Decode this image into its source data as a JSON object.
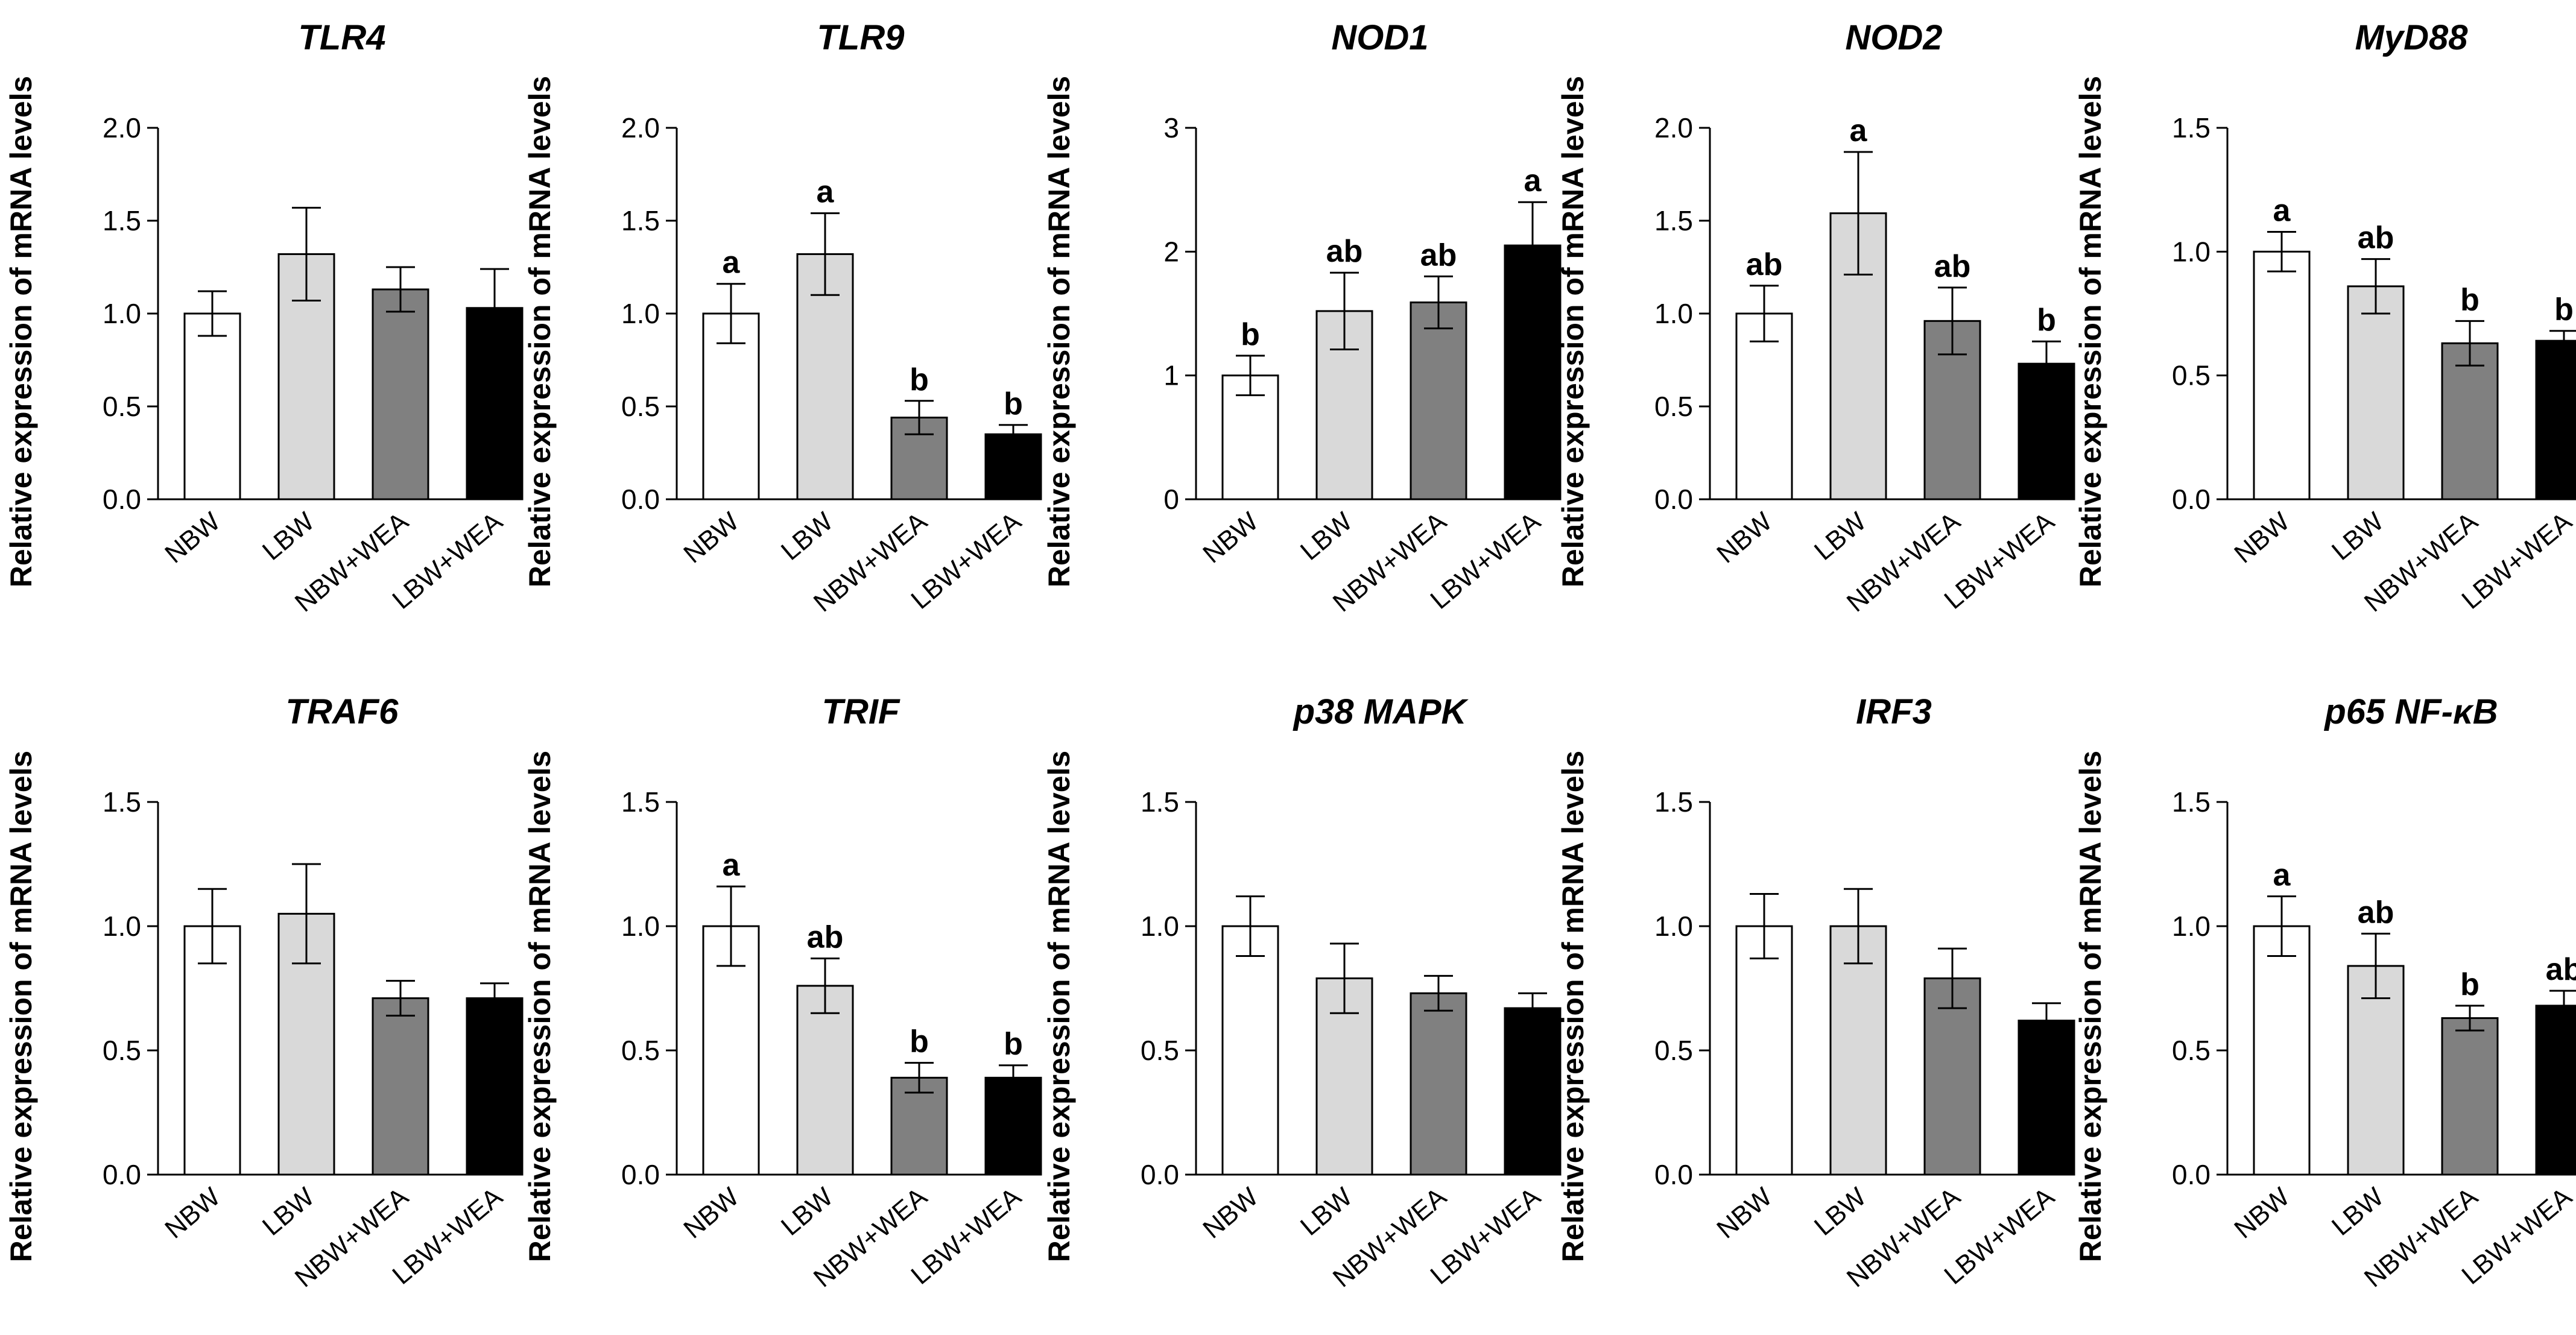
{
  "figure_title": "",
  "group_colors": {
    "NBW": "#ffffff",
    "LBW": "#d9d9d9",
    "NBW+WEA": "#808080",
    "LBW+WEA": "#000000"
  },
  "chart_data": [
    {
      "type": "bar",
      "title": "TLR4",
      "ylabel": "Relative expression of mRNA levels",
      "xlabel": "",
      "categories": [
        "NBW",
        "LBW",
        "NBW+WEA",
        "LBW+WEA"
      ],
      "values": [
        1.0,
        1.32,
        1.13,
        1.03
      ],
      "errors": [
        0.12,
        0.25,
        0.12,
        0.21
      ],
      "significance": [
        "",
        "",
        "",
        ""
      ],
      "ylim": [
        0,
        2.0
      ],
      "yticks": [
        0.0,
        0.5,
        1.0,
        1.5,
        2.0
      ],
      "ytick_labels": [
        "0.0",
        "0.5",
        "1.0",
        "1.5",
        "2.0"
      ]
    },
    {
      "type": "bar",
      "title": "TLR9",
      "ylabel": "Relative expression of mRNA levels",
      "xlabel": "",
      "categories": [
        "NBW",
        "LBW",
        "NBW+WEA",
        "LBW+WEA"
      ],
      "values": [
        1.0,
        1.32,
        0.44,
        0.35
      ],
      "errors": [
        0.16,
        0.22,
        0.09,
        0.05
      ],
      "significance": [
        "a",
        "a",
        "b",
        "b"
      ],
      "ylim": [
        0,
        2.0
      ],
      "yticks": [
        0.0,
        0.5,
        1.0,
        1.5,
        2.0
      ],
      "ytick_labels": [
        "0.0",
        "0.5",
        "1.0",
        "1.5",
        "2.0"
      ]
    },
    {
      "type": "bar",
      "title": "NOD1",
      "ylabel": "Relative expression of mRNA levels",
      "xlabel": "",
      "categories": [
        "NBW",
        "LBW",
        "NBW+WEA",
        "LBW+WEA"
      ],
      "values": [
        1.0,
        1.52,
        1.59,
        2.05
      ],
      "errors": [
        0.16,
        0.31,
        0.21,
        0.35
      ],
      "significance": [
        "b",
        "ab",
        "ab",
        "a"
      ],
      "ylim": [
        0,
        3
      ],
      "yticks": [
        0,
        1,
        2,
        3
      ],
      "ytick_labels": [
        "0",
        "1",
        "2",
        "3"
      ]
    },
    {
      "type": "bar",
      "title": "NOD2",
      "ylabel": "Relative expression of mRNA levels",
      "xlabel": "",
      "categories": [
        "NBW",
        "LBW",
        "NBW+WEA",
        "LBW+WEA"
      ],
      "values": [
        1.0,
        1.54,
        0.96,
        0.73
      ],
      "errors": [
        0.15,
        0.33,
        0.18,
        0.12
      ],
      "significance": [
        "ab",
        "a",
        "ab",
        "b"
      ],
      "ylim": [
        0,
        2.0
      ],
      "yticks": [
        0.0,
        0.5,
        1.0,
        1.5,
        2.0
      ],
      "ytick_labels": [
        "0.0",
        "0.5",
        "1.0",
        "1.5",
        "2.0"
      ]
    },
    {
      "type": "bar",
      "title": "MyD88",
      "ylabel": "Relative expression of mRNA levels",
      "xlabel": "",
      "categories": [
        "NBW",
        "LBW",
        "NBW+WEA",
        "LBW+WEA"
      ],
      "values": [
        1.0,
        0.86,
        0.63,
        0.64
      ],
      "errors": [
        0.08,
        0.11,
        0.09,
        0.04
      ],
      "significance": [
        "a",
        "ab",
        "b",
        "b"
      ],
      "ylim": [
        0,
        1.5
      ],
      "yticks": [
        0.0,
        0.5,
        1.0,
        1.5
      ],
      "ytick_labels": [
        "0.0",
        "0.5",
        "1.0",
        "1.5"
      ]
    },
    {
      "type": "bar",
      "title": "TRAF6",
      "ylabel": "Relative expression of mRNA levels",
      "xlabel": "",
      "categories": [
        "NBW",
        "LBW",
        "NBW+WEA",
        "LBW+WEA"
      ],
      "values": [
        1.0,
        1.05,
        0.71,
        0.71
      ],
      "errors": [
        0.15,
        0.2,
        0.07,
        0.06
      ],
      "significance": [
        "",
        "",
        "",
        ""
      ],
      "ylim": [
        0,
        1.5
      ],
      "yticks": [
        0.0,
        0.5,
        1.0,
        1.5
      ],
      "ytick_labels": [
        "0.0",
        "0.5",
        "1.0",
        "1.5"
      ]
    },
    {
      "type": "bar",
      "title": "TRIF",
      "ylabel": "Relative expression of mRNA levels",
      "xlabel": "",
      "categories": [
        "NBW",
        "LBW",
        "NBW+WEA",
        "LBW+WEA"
      ],
      "values": [
        1.0,
        0.76,
        0.39,
        0.39
      ],
      "errors": [
        0.16,
        0.11,
        0.06,
        0.05
      ],
      "significance": [
        "a",
        "ab",
        "b",
        "b"
      ],
      "ylim": [
        0,
        1.5
      ],
      "yticks": [
        0.0,
        0.5,
        1.0,
        1.5
      ],
      "ytick_labels": [
        "0.0",
        "0.5",
        "1.0",
        "1.5"
      ]
    },
    {
      "type": "bar",
      "title": "p38 MAPK",
      "ylabel": "Relative expression of mRNA levels",
      "xlabel": "",
      "categories": [
        "NBW",
        "LBW",
        "NBW+WEA",
        "LBW+WEA"
      ],
      "values": [
        1.0,
        0.79,
        0.73,
        0.67
      ],
      "errors": [
        0.12,
        0.14,
        0.07,
        0.06
      ],
      "significance": [
        "",
        "",
        "",
        ""
      ],
      "ylim": [
        0,
        1.5
      ],
      "yticks": [
        0.0,
        0.5,
        1.0,
        1.5
      ],
      "ytick_labels": [
        "0.0",
        "0.5",
        "1.0",
        "1.5"
      ]
    },
    {
      "type": "bar",
      "title": "IRF3",
      "ylabel": "Relative expression of mRNA levels",
      "xlabel": "",
      "categories": [
        "NBW",
        "LBW",
        "NBW+WEA",
        "LBW+WEA"
      ],
      "values": [
        1.0,
        1.0,
        0.79,
        0.62
      ],
      "errors": [
        0.13,
        0.15,
        0.12,
        0.07
      ],
      "significance": [
        "",
        "",
        "",
        ""
      ],
      "ylim": [
        0,
        1.5
      ],
      "yticks": [
        0.0,
        0.5,
        1.0,
        1.5
      ],
      "ytick_labels": [
        "0.0",
        "0.5",
        "1.0",
        "1.5"
      ]
    },
    {
      "type": "bar",
      "title": "p65 NF-κB",
      "ylabel": "Relative expression of mRNA levels",
      "xlabel": "",
      "categories": [
        "NBW",
        "LBW",
        "NBW+WEA",
        "LBW+WEA"
      ],
      "values": [
        1.0,
        0.84,
        0.63,
        0.68
      ],
      "errors": [
        0.12,
        0.13,
        0.05,
        0.06
      ],
      "significance": [
        "a",
        "ab",
        "b",
        "ab"
      ],
      "ylim": [
        0,
        1.5
      ],
      "yticks": [
        0.0,
        0.5,
        1.0,
        1.5
      ],
      "ytick_labels": [
        "0.0",
        "0.5",
        "1.0",
        "1.5"
      ]
    }
  ]
}
